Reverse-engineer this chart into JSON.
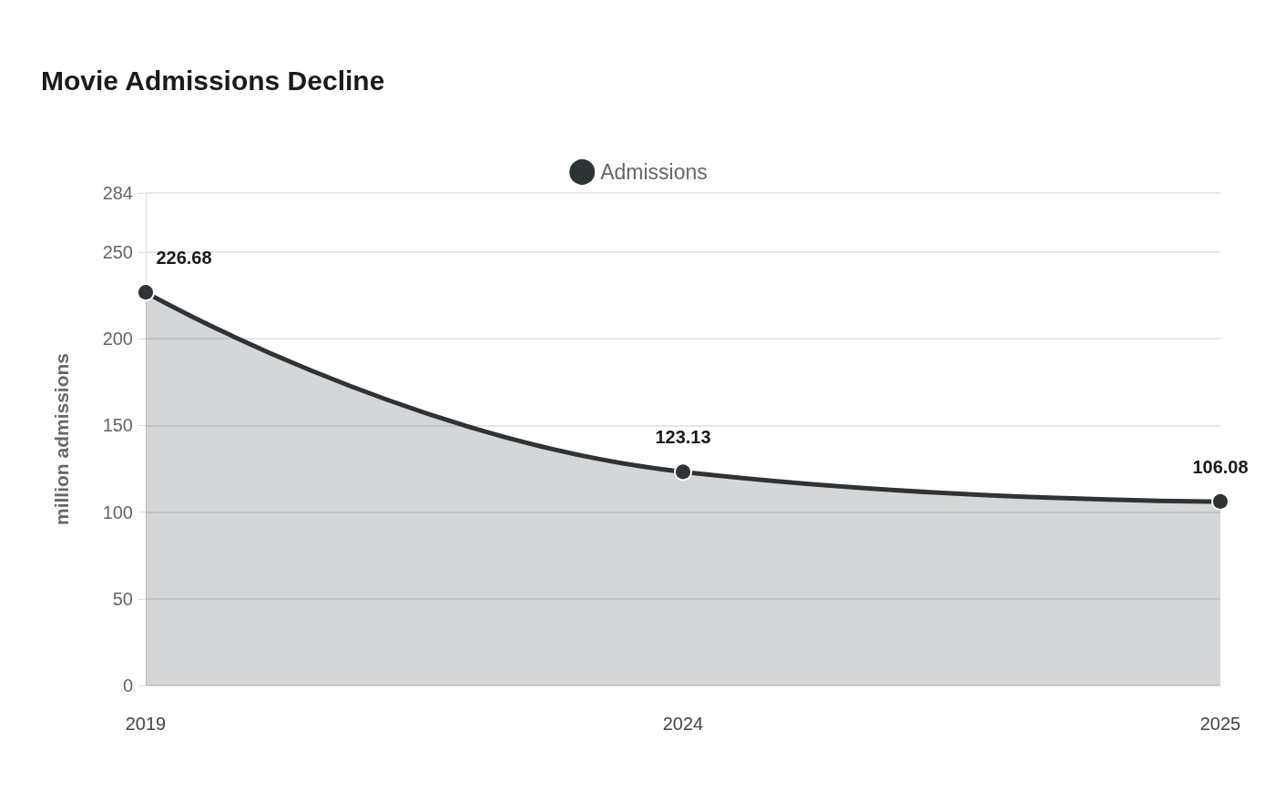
{
  "chart_data": {
    "type": "area",
    "title": "Movie Admissions Decline",
    "ylabel": "million admissions",
    "categories": [
      "2019",
      "2024",
      "2025"
    ],
    "series": [
      {
        "name": "Admissions",
        "color": "#2d3436",
        "values": [
          226.68,
          123.13,
          106.08
        ]
      }
    ],
    "ylim": [
      0,
      284
    ],
    "yticks": [
      0,
      50,
      100,
      150,
      200,
      250,
      284
    ],
    "grid": "y",
    "legend": "top",
    "marker": "circle",
    "data_labels": true
  }
}
